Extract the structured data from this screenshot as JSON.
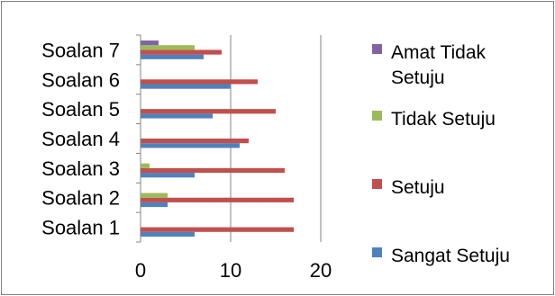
{
  "chart_data": {
    "type": "bar",
    "orientation": "horizontal",
    "categories": [
      "Soalan 1",
      "Soalan 2",
      "Soalan 3",
      "Soalan 4",
      "Soalan 5",
      "Soalan 6",
      "Soalan 7"
    ],
    "series": [
      {
        "name": "Sangat Setuju",
        "color": "#4f81bd",
        "values": [
          6,
          3,
          6,
          11,
          8,
          10,
          7
        ]
      },
      {
        "name": "Setuju",
        "color": "#c0504d",
        "values": [
          17,
          17,
          16,
          12,
          15,
          13,
          9
        ]
      },
      {
        "name": "Tidak Setuju",
        "color": "#9bbb59",
        "values": [
          0,
          3,
          1,
          0,
          0,
          0,
          6
        ]
      },
      {
        "name": "Amat Tidak Setuju",
        "color": "#8064a2",
        "values": [
          0,
          0,
          0,
          0,
          0,
          0,
          2
        ]
      }
    ],
    "xlim": [
      0,
      20
    ],
    "xticks": [
      0,
      10,
      20
    ],
    "grid": true,
    "legend_position": "right",
    "legend": [
      {
        "series": "Amat Tidak Setuju",
        "lines": [
          "Amat Tidak",
          "Setuju"
        ]
      },
      {
        "series": "Tidak Setuju",
        "lines": [
          "Tidak Setuju"
        ]
      },
      {
        "series": "Setuju",
        "lines": [
          "Setuju"
        ]
      },
      {
        "series": "Sangat Setuju",
        "lines": [
          "Sangat Setuju"
        ]
      }
    ]
  }
}
